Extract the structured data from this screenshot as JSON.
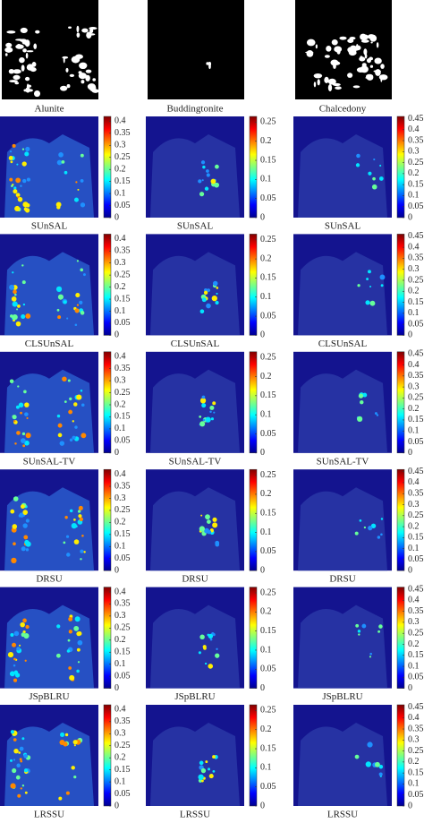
{
  "references": [
    "Alunite",
    "Buddingtonite",
    "Chalcedony"
  ],
  "methods": [
    "SUnSAL",
    "CLSUnSAL",
    "SUnSAL-TV",
    "DRSU",
    "JSpBLRU",
    "LRSSU"
  ],
  "colorbars": [
    {
      "ylim": [
        0,
        0.42
      ],
      "yticks": [
        0,
        0.05,
        0.1,
        0.15,
        0.2,
        0.25,
        0.3,
        0.35,
        0.4
      ]
    },
    {
      "ylim": [
        0,
        0.265
      ],
      "yticks": [
        0,
        0.05,
        0.1,
        0.15,
        0.2,
        0.25
      ]
    },
    {
      "ylim": [
        0,
        0.46
      ],
      "yticks": [
        0,
        0.05,
        0.1,
        0.15,
        0.2,
        0.25,
        0.3,
        0.35,
        0.4,
        0.45
      ]
    }
  ]
}
